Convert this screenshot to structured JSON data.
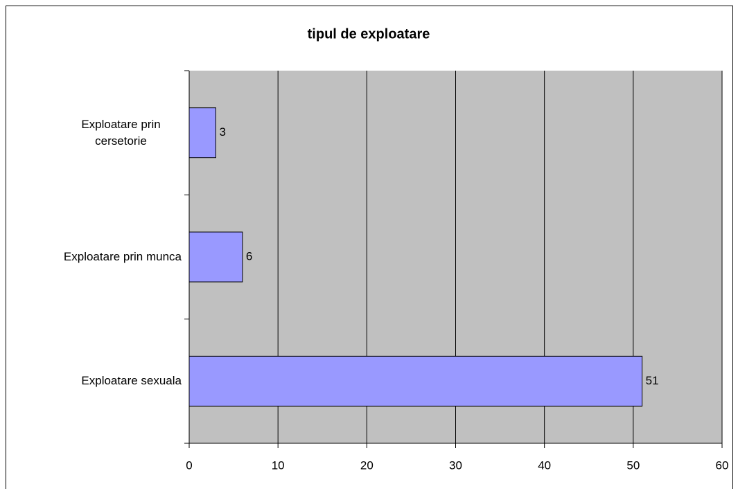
{
  "chart_data": {
    "type": "bar",
    "orientation": "horizontal",
    "title": "tipul de exploatare",
    "categories": [
      "Exploatare prin cersetorie",
      "Exploatare prin munca",
      "Exploatare sexuala"
    ],
    "values": [
      3,
      6,
      51
    ],
    "color": "#9999ff",
    "xlim": [
      0,
      60
    ],
    "xticks": [
      0,
      10,
      20,
      30,
      40,
      50,
      60
    ],
    "grid": true
  }
}
